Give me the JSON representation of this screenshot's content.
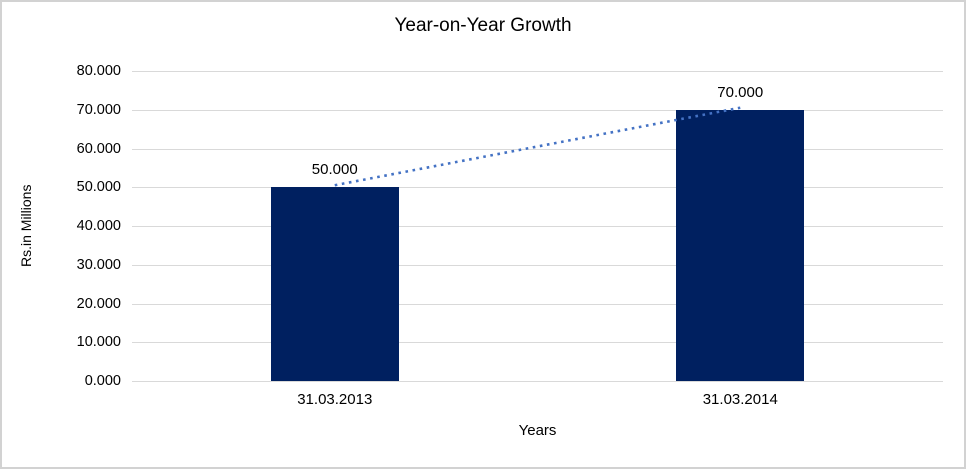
{
  "chart_data": {
    "type": "bar",
    "title": "Year-on-Year Growth",
    "xlabel": "Years",
    "ylabel": "Rs.in Millions",
    "categories": [
      "31.03.2013",
      "31.03.2014"
    ],
    "values": [
      50000,
      70000
    ],
    "value_labels": [
      "50.000",
      "70.000"
    ],
    "y_tick_values": [
      0,
      10000,
      20000,
      30000,
      40000,
      50000,
      60000,
      70000,
      80000
    ],
    "y_tick_labels": [
      "0.000",
      "10.000",
      "20.000",
      "30.000",
      "40.000",
      "50.000",
      "60.000",
      "70.000",
      "80.000"
    ],
    "ylim": [
      0,
      80000
    ],
    "grid": true,
    "legend": "none",
    "bar_color": "#002060",
    "gridline_color": "#d9d9d9",
    "text_color": "#000000",
    "frame_border_color": "#d2d2d2",
    "trendline": {
      "type": "linear",
      "style": "dotted",
      "color": "#4472C4",
      "points": [
        50000,
        70000
      ]
    }
  }
}
